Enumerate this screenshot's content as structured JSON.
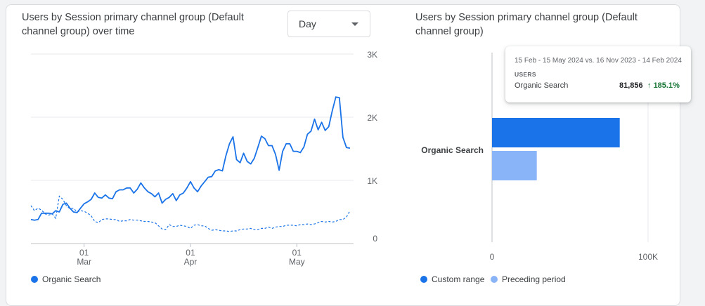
{
  "left_card": {
    "title": "Users by Session primary channel group (Default channel group) over time",
    "granularity_dropdown": {
      "selected": "Day"
    },
    "legend": [
      {
        "label": "Organic Search",
        "color": "#1a73e8"
      }
    ]
  },
  "right_card": {
    "title": "Users by Session primary channel group (Default channel group)",
    "legend": [
      {
        "label": "Custom range",
        "color": "#1a73e8"
      },
      {
        "label": "Preceding period",
        "color": "#8ab4f8"
      }
    ],
    "tooltip": {
      "range": "15 Feb - 15 May 2024 vs. 16 Nov 2023 - 14 Feb 2024",
      "metric": "USERS",
      "channel": "Organic Search",
      "value": "81,856",
      "change": "185.1%",
      "change_color": "#137333",
      "change_icon": "arrow-up-icon"
    }
  },
  "chart_data": [
    {
      "type": "line",
      "title": "Users by Session primary channel group (Default channel group) over time",
      "y_ticks": [
        "0",
        "1K",
        "2K",
        "3K"
      ],
      "ylim": [
        0,
        3000
      ],
      "x_ticks": [
        {
          "day": 15,
          "top": "01",
          "bottom": "Mar"
        },
        {
          "day": 45,
          "top": "01",
          "bottom": "Apr"
        },
        {
          "day": 75,
          "top": "01",
          "bottom": "May"
        }
      ],
      "xlim": [
        0,
        91
      ],
      "grid": true,
      "legend_position": "bottom-left",
      "series": [
        {
          "name": "Organic Search",
          "style": "solid",
          "color": "#1a73e8",
          "values": [
            380,
            370,
            380,
            480,
            480,
            480,
            470,
            520,
            500,
            620,
            640,
            560,
            500,
            490,
            560,
            630,
            660,
            700,
            800,
            730,
            720,
            770,
            720,
            710,
            820,
            850,
            850,
            880,
            880,
            800,
            860,
            960,
            880,
            820,
            790,
            740,
            800,
            640,
            700,
            730,
            790,
            680,
            770,
            800,
            880,
            980,
            880,
            820,
            910,
            980,
            1050,
            1060,
            1150,
            1170,
            1150,
            1390,
            1580,
            1690,
            1330,
            1280,
            1430,
            1300,
            1260,
            1350,
            1520,
            1700,
            1660,
            1550,
            1550,
            1410,
            1160,
            1460,
            1580,
            1580,
            1460,
            1460,
            1440,
            1530,
            1730,
            1780,
            1970,
            1800,
            1920,
            1790,
            1850,
            2100,
            2320,
            2310,
            1680,
            1520,
            1510
          ]
        },
        {
          "name": "Preceding period",
          "style": "dashed",
          "color": "#1a73e8",
          "values": [
            600,
            520,
            560,
            530,
            470,
            450,
            470,
            400,
            750,
            700,
            600,
            550,
            560,
            500,
            520,
            510,
            480,
            440,
            350,
            330,
            380,
            390,
            390,
            380,
            380,
            350,
            360,
            360,
            380,
            370,
            370,
            360,
            350,
            350,
            340,
            330,
            280,
            230,
            220,
            300,
            270,
            270,
            290,
            280,
            270,
            240,
            290,
            300,
            280,
            280,
            240,
            210,
            220,
            210,
            200,
            200,
            190,
            200,
            200,
            220,
            230,
            230,
            240,
            220,
            220,
            240,
            240,
            260,
            240,
            260,
            270,
            270,
            290,
            290,
            290,
            280,
            300,
            300,
            310,
            300,
            310,
            330,
            350,
            340,
            350,
            340,
            350,
            380,
            380,
            420,
            520
          ]
        }
      ]
    },
    {
      "type": "bar",
      "orientation": "horizontal",
      "title": "Users by Session primary channel group (Default channel group)",
      "categories": [
        "Organic Search"
      ],
      "series": [
        {
          "name": "Custom range",
          "values": [
            81856
          ],
          "color": "#1a73e8"
        },
        {
          "name": "Preceding period",
          "values": [
            28712
          ],
          "color": "#8ab4f8"
        }
      ],
      "x_ticks": [
        "0",
        "100K"
      ],
      "xlim": [
        0,
        100000
      ],
      "grid": true,
      "legend_position": "bottom-left"
    }
  ]
}
